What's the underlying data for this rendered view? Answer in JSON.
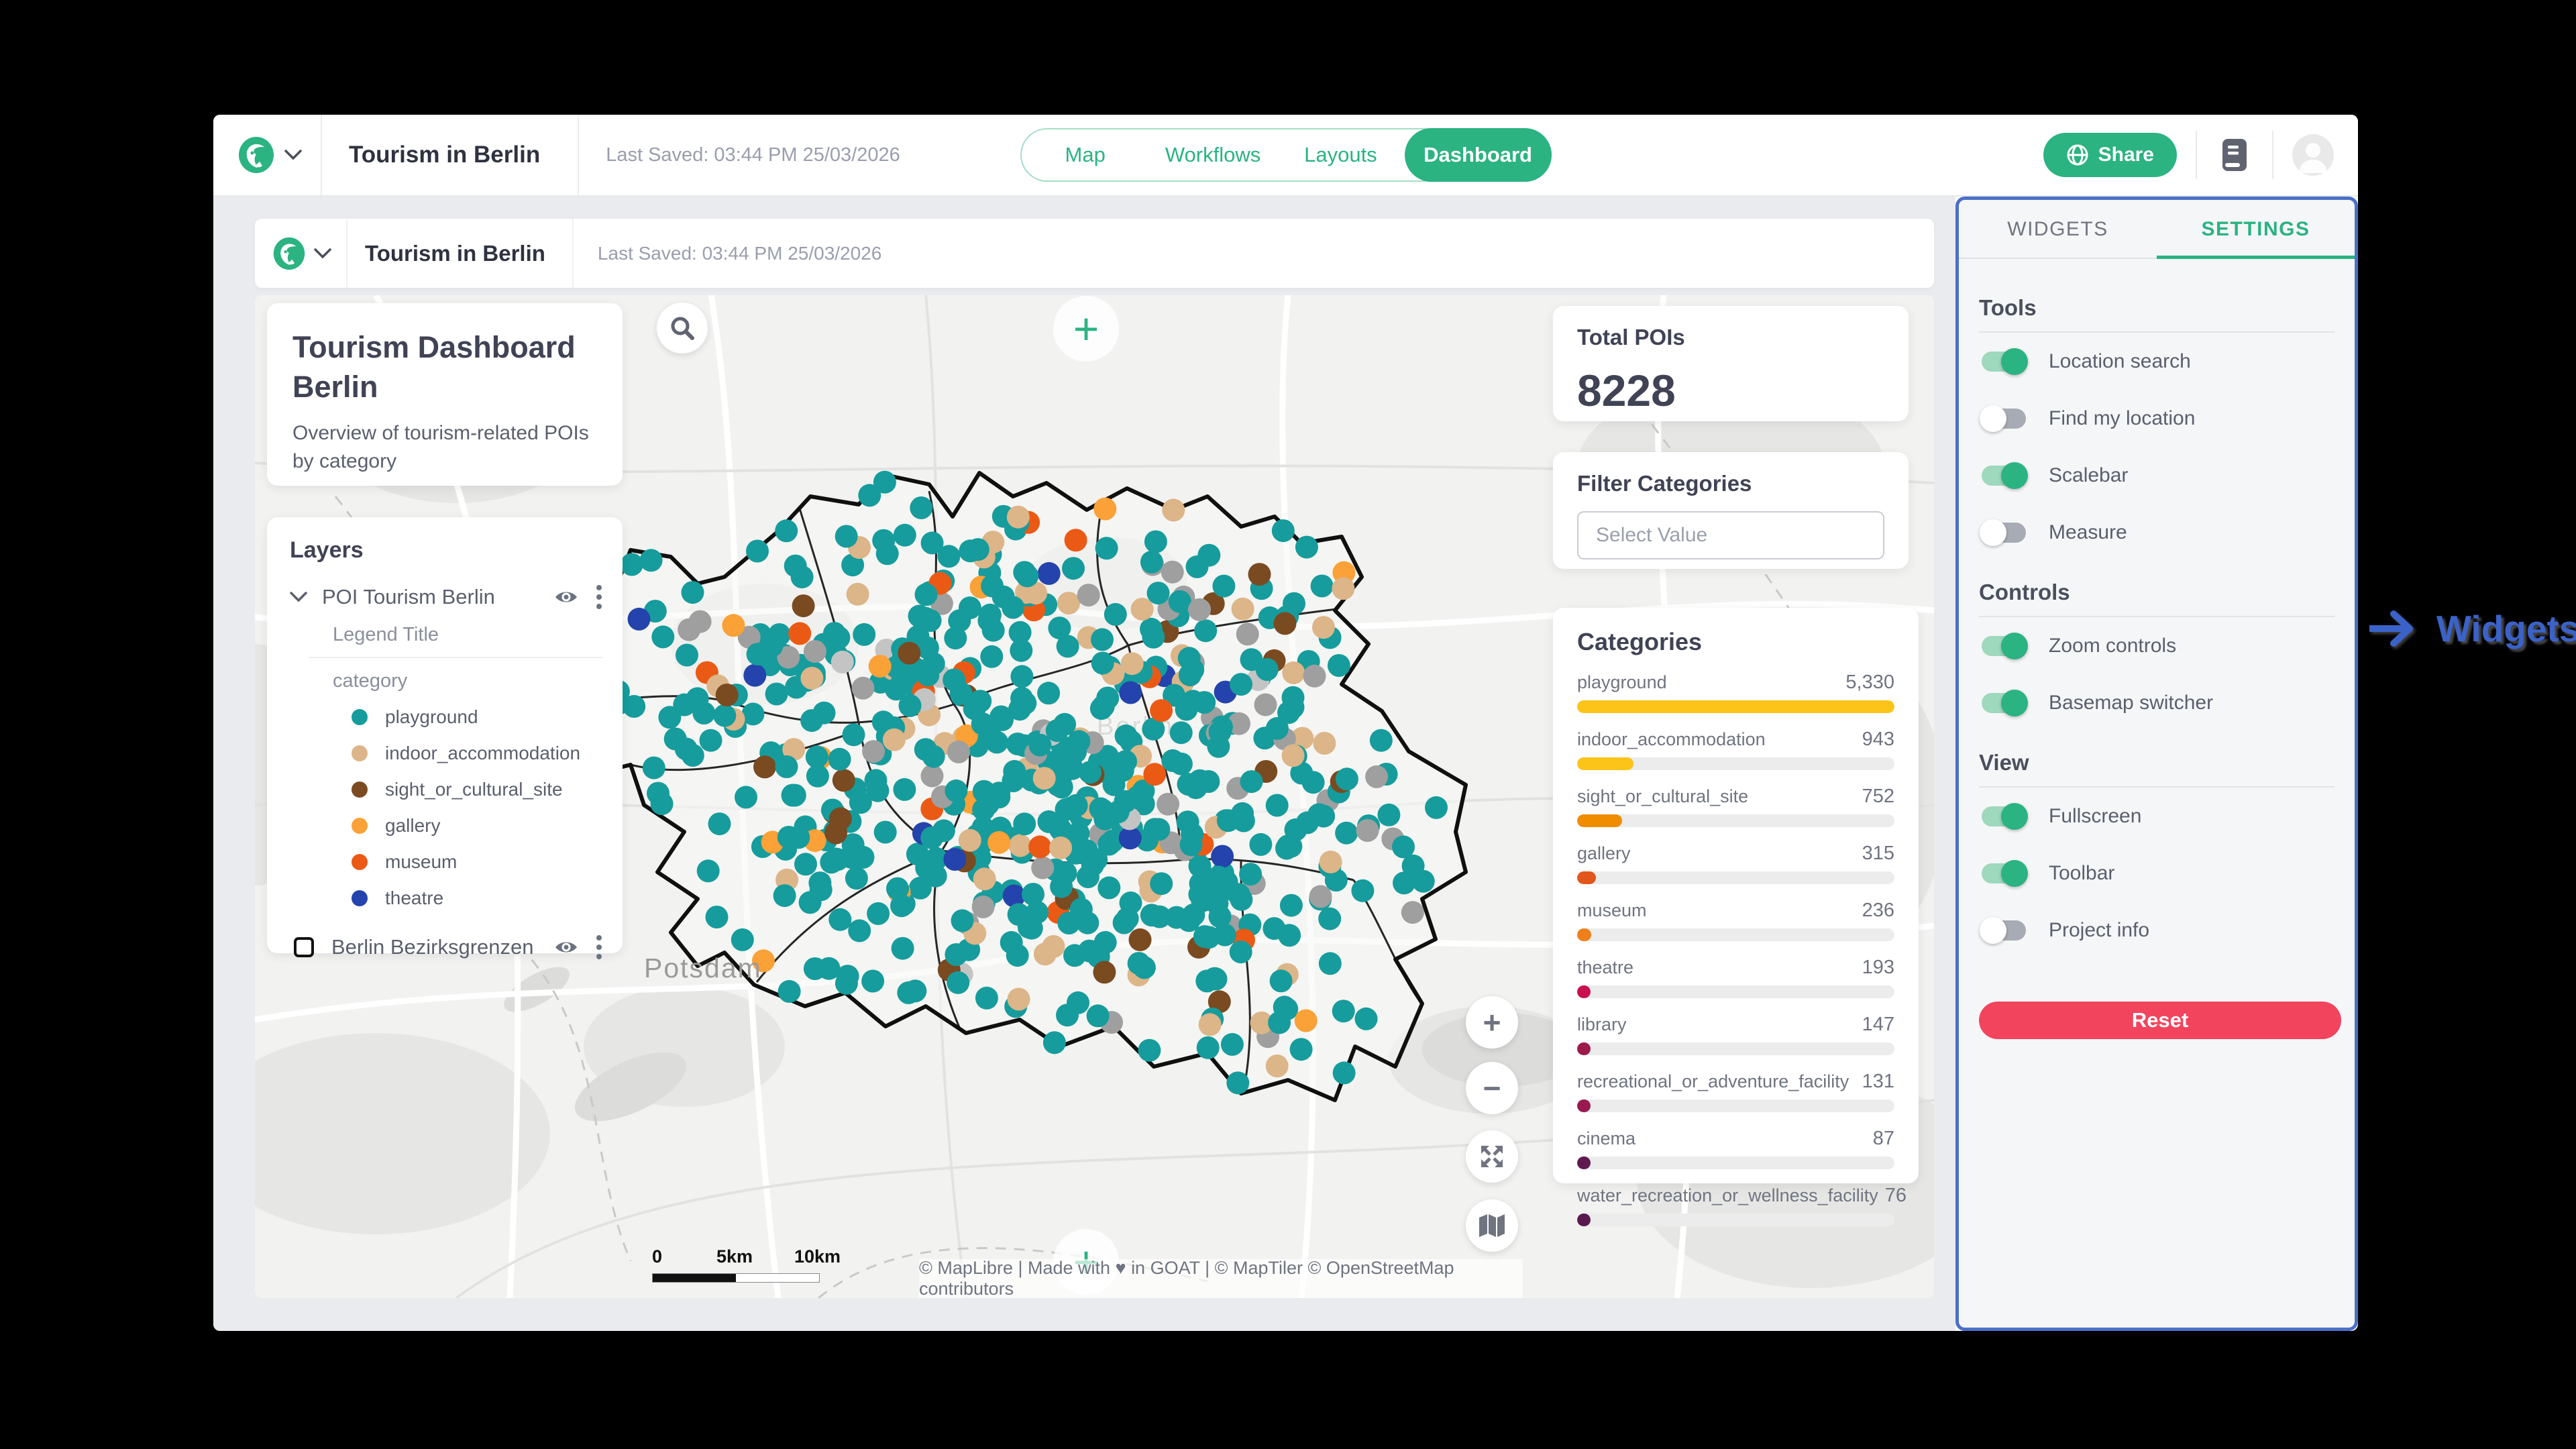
{
  "app": {
    "title": "Tourism in Berlin",
    "last_saved": "Last Saved: 03:44 PM 25/03/2026",
    "tabs": [
      "Map",
      "Workflows",
      "Layouts",
      "Dashboard"
    ],
    "active_tab": "Dashboard",
    "share_label": "Share",
    "brand_color": "#2bb381"
  },
  "dashboard_header": {
    "title": "Tourism in Berlin",
    "last_saved": "Last Saved: 03:44 PM 25/03/2026"
  },
  "title_card": {
    "title": "Tourism Dashboard Berlin",
    "subtitle": "Overview of tourism-related POIs by category"
  },
  "layers_panel": {
    "heading": "Layers",
    "layer1": {
      "name": "POI Tourism Berlin",
      "legend_title": "Legend Title",
      "attribute": "category",
      "legend": [
        {
          "label": "playground",
          "color": "#169c9c"
        },
        {
          "label": "indoor_accommodation",
          "color": "#dcb588"
        },
        {
          "label": "sight_or_cultural_site",
          "color": "#7a4a21"
        },
        {
          "label": "gallery",
          "color": "#faa137"
        },
        {
          "label": "museum",
          "color": "#eb5a15"
        },
        {
          "label": "theatre",
          "color": "#2443ac"
        }
      ]
    },
    "layer2": {
      "name": "Berlin Bezirksgrenzen"
    }
  },
  "stats": {
    "total_pois_label": "Total POIs",
    "total_pois_value": "8228",
    "filter_label": "Filter Categories",
    "filter_placeholder": "Select Value"
  },
  "chart_data": {
    "type": "bar",
    "title": "Categories",
    "categories": [
      "playground",
      "indoor_accommodation",
      "sight_or_cultural_site",
      "gallery",
      "museum",
      "theatre",
      "library",
      "recreational_or_adventure_facility",
      "cinema",
      "water_recreation_or_wellness_facility"
    ],
    "values": [
      5330,
      943,
      752,
      315,
      236,
      193,
      147,
      131,
      87,
      76
    ],
    "value_labels": [
      "5,330",
      "943",
      "752",
      "315",
      "236",
      "193",
      "147",
      "131",
      "87",
      "76"
    ],
    "bar_colors": [
      "#fcc419",
      "#fcc419",
      "#f08c00",
      "#e2561b",
      "#ef7f1a",
      "#c9104c",
      "#9c1a4c",
      "#991a4e",
      "#5f1a50",
      "#5a1a4f"
    ],
    "xlabel": "",
    "ylabel": "",
    "xlim": [
      0,
      5330
    ],
    "legend": false,
    "grid": false
  },
  "map": {
    "potsdam_label": "Potsdam",
    "berlin_label": "Berlin",
    "attribution": "© MapLibre | Made with ♥ in GOAT | © MapTiler © OpenStreetMap contributors",
    "scalebar": {
      "zero": "0",
      "mid": "5km",
      "end": "10km"
    },
    "dots": {
      "seed": 11,
      "count": 640,
      "radius": 17,
      "palette": [
        {
          "color": "#169c9c",
          "weight": 0.7
        },
        {
          "color": "#dcb588",
          "weight": 0.09
        },
        {
          "color": "#7a4a21",
          "weight": 0.05
        },
        {
          "color": "#9f9f9f",
          "weight": 0.06
        },
        {
          "color": "#faa137",
          "weight": 0.03
        },
        {
          "color": "#eb5a15",
          "weight": 0.03
        },
        {
          "color": "#2443ac",
          "weight": 0.02
        },
        {
          "color": "#c4c4c4",
          "weight": 0.02
        }
      ]
    }
  },
  "settings_panel": {
    "tabs": [
      "WIDGETS",
      "SETTINGS"
    ],
    "active_tab": "SETTINGS",
    "groups": [
      {
        "heading": "Tools",
        "items": [
          {
            "label": "Location search",
            "on": true
          },
          {
            "label": "Find my location",
            "on": false
          },
          {
            "label": "Scalebar",
            "on": true
          },
          {
            "label": "Measure",
            "on": false
          }
        ]
      },
      {
        "heading": "Controls",
        "items": [
          {
            "label": "Zoom controls",
            "on": true
          },
          {
            "label": "Basemap switcher",
            "on": true
          }
        ]
      },
      {
        "heading": "View",
        "items": [
          {
            "label": "Fullscreen",
            "on": true
          },
          {
            "label": "Toolbar",
            "on": true
          },
          {
            "label": "Project info",
            "on": false
          }
        ]
      }
    ],
    "reset_label": "Reset"
  },
  "annotation": {
    "label": "Widgets"
  }
}
